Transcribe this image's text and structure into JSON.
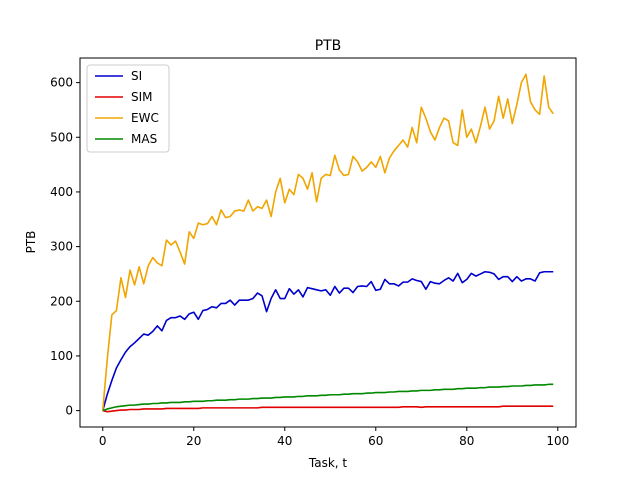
{
  "chart_data": {
    "type": "line",
    "title": "PTB",
    "xlabel": "Task, t",
    "ylabel": "PTB",
    "xlim": [
      -5,
      104
    ],
    "ylim": [
      -30,
      645
    ],
    "xticks": [
      0,
      20,
      40,
      60,
      80,
      100
    ],
    "yticks": [
      0,
      100,
      200,
      300,
      400,
      500,
      600
    ],
    "grid": false,
    "legend_position": "top-left",
    "x": [
      0,
      1,
      2,
      3,
      4,
      5,
      6,
      7,
      8,
      9,
      10,
      11,
      12,
      13,
      14,
      15,
      16,
      17,
      18,
      19,
      20,
      21,
      22,
      23,
      24,
      25,
      26,
      27,
      28,
      29,
      30,
      31,
      32,
      33,
      34,
      35,
      36,
      37,
      38,
      39,
      40,
      41,
      42,
      43,
      44,
      45,
      46,
      47,
      48,
      49,
      50,
      51,
      52,
      53,
      54,
      55,
      56,
      57,
      58,
      59,
      60,
      61,
      62,
      63,
      64,
      65,
      66,
      67,
      68,
      69,
      70,
      71,
      72,
      73,
      74,
      75,
      76,
      77,
      78,
      79,
      80,
      81,
      82,
      83,
      84,
      85,
      86,
      87,
      88,
      89,
      90,
      91,
      92,
      93,
      94,
      95,
      96,
      97,
      98,
      99
    ],
    "series": [
      {
        "name": "SI",
        "color": "#0000cc",
        "values": [
          0,
          30,
          55,
          78,
          93,
          107,
          117,
          124,
          132,
          140,
          138,
          145,
          155,
          146,
          165,
          170,
          170,
          173,
          167,
          177,
          180,
          167,
          183,
          185,
          190,
          188,
          196,
          196,
          202,
          193,
          202,
          202,
          202,
          205,
          215,
          210,
          181,
          205,
          221,
          205,
          205,
          223,
          213,
          221,
          208,
          225,
          223,
          221,
          219,
          221,
          211,
          227,
          215,
          224,
          224,
          216,
          227,
          228,
          227,
          236,
          220,
          222,
          240,
          232,
          232,
          228,
          235,
          235,
          241,
          238,
          236,
          222,
          236,
          233,
          232,
          238,
          243,
          237,
          251,
          234,
          240,
          251,
          246,
          250,
          254,
          253,
          250,
          240,
          245,
          245,
          236,
          245,
          237,
          241,
          241,
          237,
          252,
          254,
          254,
          254
        ]
      },
      {
        "name": "SIM",
        "color": "#e00000",
        "values": [
          0,
          -2,
          -1,
          0,
          1,
          1,
          2,
          2,
          2,
          3,
          3,
          3,
          3,
          3,
          4,
          4,
          4,
          4,
          4,
          4,
          4,
          4,
          5,
          5,
          5,
          5,
          5,
          5,
          5,
          5,
          5,
          5,
          5,
          5,
          5,
          6,
          6,
          6,
          6,
          6,
          6,
          6,
          6,
          6,
          6,
          6,
          6,
          6,
          6,
          6,
          6,
          6,
          6,
          6,
          6,
          6,
          6,
          6,
          6,
          6,
          6,
          6,
          6,
          6,
          6,
          6,
          7,
          7,
          7,
          7,
          6,
          7,
          7,
          7,
          7,
          7,
          7,
          7,
          7,
          7,
          7,
          7,
          7,
          7,
          7,
          7,
          7,
          7,
          8,
          8,
          8,
          8,
          8,
          8,
          8,
          8,
          8,
          8,
          8,
          8
        ]
      },
      {
        "name": "EWC",
        "color": "#f0a500",
        "values": [
          0,
          95,
          175,
          183,
          243,
          207,
          257,
          230,
          263,
          232,
          265,
          280,
          270,
          265,
          312,
          303,
          310,
          290,
          268,
          327,
          315,
          343,
          340,
          342,
          355,
          340,
          367,
          353,
          355,
          365,
          367,
          365,
          385,
          365,
          373,
          370,
          385,
          355,
          400,
          425,
          380,
          405,
          395,
          432,
          425,
          405,
          435,
          382,
          425,
          432,
          430,
          467,
          440,
          430,
          432,
          465,
          455,
          438,
          445,
          455,
          445,
          465,
          435,
          462,
          475,
          485,
          495,
          482,
          518,
          490,
          555,
          535,
          510,
          495,
          518,
          535,
          530,
          490,
          485,
          550,
          500,
          515,
          490,
          520,
          555,
          515,
          530,
          575,
          535,
          570,
          525,
          560,
          600,
          615,
          565,
          550,
          542,
          612,
          555,
          543
        ]
      },
      {
        "name": "MAS",
        "color": "#008800",
        "values": [
          0,
          3,
          5,
          7,
          8,
          9,
          10,
          10,
          11,
          12,
          12,
          13,
          13,
          14,
          14,
          15,
          15,
          15,
          16,
          16,
          17,
          17,
          17,
          18,
          18,
          19,
          19,
          19,
          20,
          20,
          21,
          21,
          21,
          22,
          22,
          23,
          23,
          23,
          24,
          24,
          25,
          25,
          25,
          26,
          26,
          27,
          27,
          27,
          28,
          28,
          29,
          29,
          29,
          30,
          30,
          31,
          31,
          31,
          32,
          32,
          33,
          33,
          33,
          34,
          34,
          35,
          35,
          35,
          36,
          36,
          37,
          37,
          37,
          38,
          38,
          39,
          39,
          39,
          40,
          40,
          41,
          41,
          41,
          42,
          42,
          43,
          43,
          43,
          44,
          44,
          45,
          45,
          45,
          46,
          46,
          47,
          47,
          47,
          48,
          48
        ]
      }
    ]
  }
}
